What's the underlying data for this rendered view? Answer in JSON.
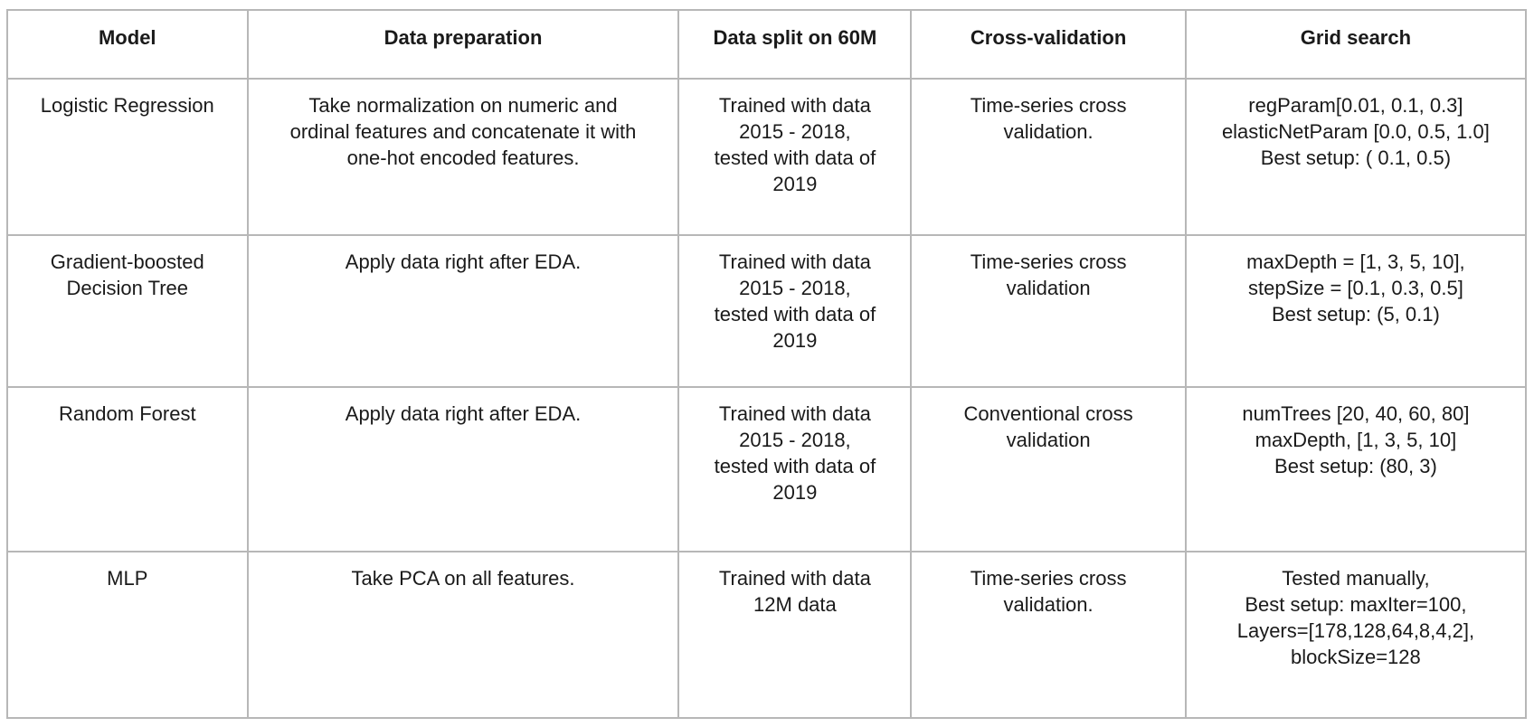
{
  "table": {
    "headers": [
      "Model",
      "Data preparation",
      "Data split on 60M",
      "Cross-validation",
      "Grid search"
    ],
    "rows": [
      {
        "model": [
          "Logistic Regression"
        ],
        "prep": [
          "Take normalization on numeric and",
          "ordinal features and concatenate it with",
          "one-hot encoded features."
        ],
        "split": [
          "Trained with data",
          "2015 - 2018,",
          "tested with data of",
          "2019"
        ],
        "cv": [
          "Time-series cross",
          "validation."
        ],
        "grid": [
          "regParam[0.01, 0.1, 0.3]",
          "elasticNetParam [0.0, 0.5, 1.0]",
          "Best setup: ( 0.1, 0.5)"
        ]
      },
      {
        "model": [
          "Gradient-boosted",
          "Decision Tree"
        ],
        "prep": [
          "Apply data right after EDA."
        ],
        "split": [
          "Trained with data",
          "2015 - 2018,",
          "tested with data of",
          "2019"
        ],
        "cv": [
          "Time-series cross",
          "validation"
        ],
        "grid": [
          "maxDepth = [1, 3, 5, 10],",
          "stepSize = [0.1, 0.3, 0.5]",
          "Best setup: (5, 0.1)"
        ]
      },
      {
        "model": [
          "Random Forest"
        ],
        "prep": [
          "Apply data right after EDA."
        ],
        "split": [
          "Trained with data",
          "2015 - 2018,",
          "tested with data of",
          "2019"
        ],
        "cv": [
          "Conventional cross",
          "validation"
        ],
        "grid": [
          "numTrees [20, 40, 60, 80]",
          "maxDepth, [1, 3, 5, 10]",
          "Best setup: (80, 3)"
        ]
      },
      {
        "model": [
          "MLP"
        ],
        "prep": [
          "Take PCA on all features."
        ],
        "split": [
          "Trained with data",
          "12M data"
        ],
        "cv": [
          "Time-series cross",
          "validation."
        ],
        "grid": [
          "Tested manually,",
          "Best setup: maxIter=100,",
          "Layers=[178,128,64,8,4,2],",
          "blockSize=128"
        ]
      }
    ]
  }
}
